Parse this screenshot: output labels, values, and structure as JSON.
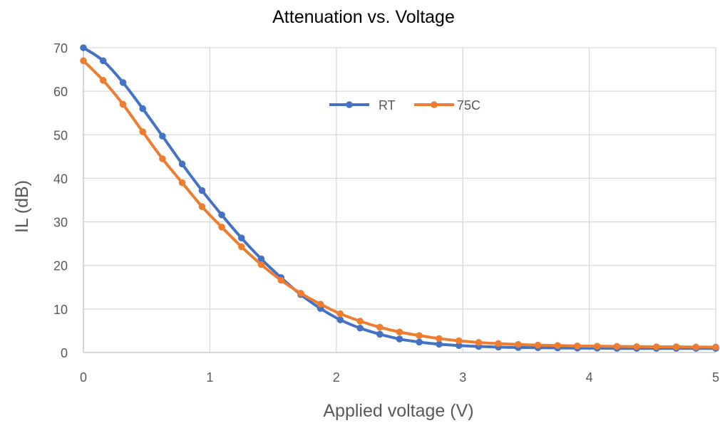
{
  "chart_data": {
    "type": "line",
    "title": "Attenuation vs. Voltage",
    "xlabel": "Applied voltage (V)",
    "ylabel": "IL (dB)",
    "xlim": [
      0,
      5
    ],
    "ylim": [
      0,
      70
    ],
    "xticks": [
      0,
      1,
      2,
      3,
      4,
      5
    ],
    "yticks": [
      0,
      10,
      20,
      30,
      40,
      50,
      60,
      70
    ],
    "grid": true,
    "legend_position": "top-center",
    "x": [
      0,
      0.156,
      0.313,
      0.469,
      0.625,
      0.781,
      0.938,
      1.094,
      1.25,
      1.406,
      1.563,
      1.719,
      1.875,
      2.031,
      2.188,
      2.344,
      2.5,
      2.656,
      2.813,
      2.969,
      3.125,
      3.281,
      3.438,
      3.594,
      3.75,
      3.906,
      4.063,
      4.219,
      4.375,
      4.531,
      4.688,
      4.844,
      5
    ],
    "series": [
      {
        "name": "RT",
        "color": "#4472c4",
        "values": [
          70,
          67,
          62,
          56,
          49.7,
          43.3,
          37.2,
          31.6,
          26.3,
          21.5,
          17.2,
          13.3,
          10.1,
          7.5,
          5.6,
          4.2,
          3.1,
          2.4,
          1.9,
          1.6,
          1.4,
          1.25,
          1.15,
          1.1,
          1.05,
          1.0,
          1.0,
          0.95,
          0.95,
          0.95,
          0.95,
          0.95,
          0.95
        ]
      },
      {
        "name": "75C",
        "color": "#ed7d31",
        "values": [
          67,
          62.5,
          57,
          50.7,
          44.5,
          39,
          33.5,
          28.8,
          24.3,
          20.2,
          16.6,
          13.6,
          11.1,
          8.9,
          7.2,
          5.8,
          4.7,
          3.9,
          3.2,
          2.7,
          2.3,
          2.05,
          1.85,
          1.7,
          1.6,
          1.5,
          1.45,
          1.4,
          1.35,
          1.3,
          1.3,
          1.25,
          1.25
        ]
      }
    ]
  }
}
